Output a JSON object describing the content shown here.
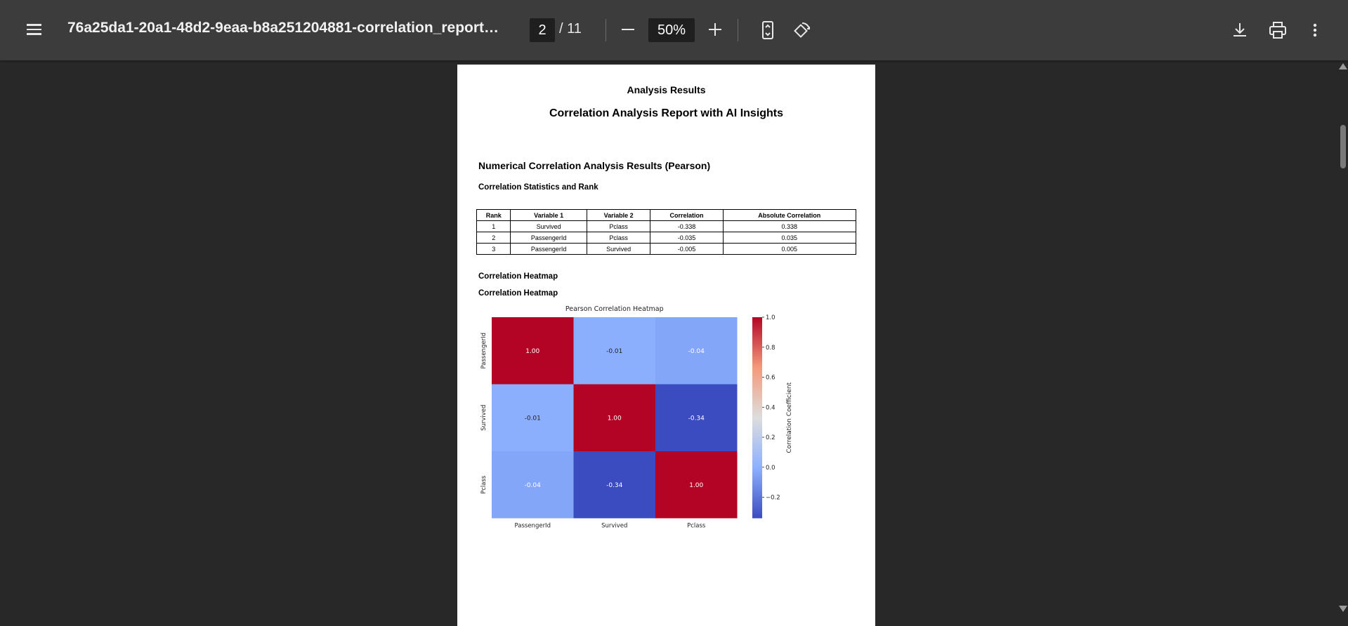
{
  "toolbar": {
    "title": "76a25da1-20a1-48d2-9eaa-b8a251204881-correlation_report_ee...",
    "page_current": "2",
    "page_total": "/ 11",
    "zoom": "50%",
    "icons": [
      "menu-icon",
      "minus-icon",
      "plus-icon",
      "fit-page-icon",
      "rotate-icon",
      "download-icon",
      "print-icon",
      "more-icon"
    ]
  },
  "page": {
    "header": "Analysis Results",
    "title": "Correlation Analysis Report with AI Insights",
    "section1": "Numerical Correlation Analysis Results (Pearson)",
    "sub1": "Correlation Statistics and Rank",
    "table": {
      "headers": [
        "Rank",
        "Variable 1",
        "Variable 2",
        "Correlation",
        "Absolute Correlation"
      ],
      "rows": [
        [
          "1",
          "Survived",
          "Pclass",
          "-0.338",
          "0.338"
        ],
        [
          "2",
          "PassengerId",
          "Pclass",
          "-0.035",
          "0.035"
        ],
        [
          "3",
          "PassengerId",
          "Survived",
          "-0.005",
          "0.005"
        ]
      ]
    },
    "section2": "Correlation Heatmap",
    "sub2": "Correlation Heatmap"
  },
  "chart_data": {
    "type": "heatmap",
    "title": "Pearson Correlation Heatmap",
    "x_categories": [
      "PassengerId",
      "Survived",
      "Pclass"
    ],
    "y_categories": [
      "PassengerId",
      "Survived",
      "Pclass"
    ],
    "values": [
      [
        1.0,
        -0.01,
        -0.04
      ],
      [
        -0.01,
        1.0,
        -0.34
      ],
      [
        -0.04,
        -0.34,
        1.0
      ]
    ],
    "value_labels": [
      [
        "1.00",
        "-0.01",
        "-0.04"
      ],
      [
        "-0.01",
        "1.00",
        "-0.34"
      ],
      [
        "-0.04",
        "-0.34",
        "1.00"
      ]
    ],
    "colorbar_label": "Correlation Coefficient",
    "colorbar_range": [
      -0.34,
      1.0
    ],
    "colorbar_ticks": [
      "1.0",
      "0.8",
      "0.6",
      "0.4",
      "0.2",
      "0.0",
      "−0.2"
    ],
    "colorbar_tick_values": [
      1.0,
      0.8,
      0.6,
      0.4,
      0.2,
      0.0,
      -0.2
    ],
    "colormap": "coolwarm",
    "colors": {
      "high": "#b40426",
      "low": "#3b4cc0"
    }
  }
}
